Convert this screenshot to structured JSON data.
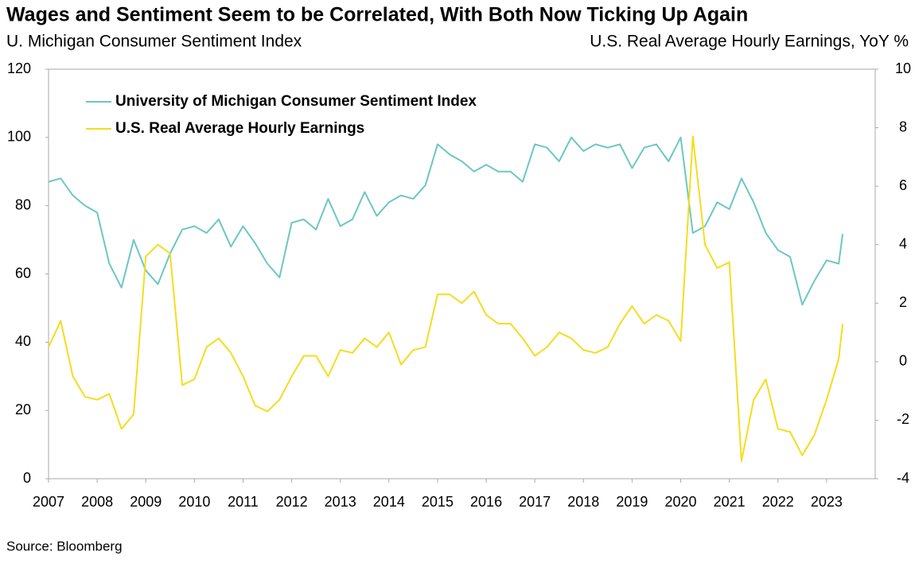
{
  "chart_data": {
    "type": "line",
    "title": "Wages and Sentiment Seem to be Correlated, With Both Now Ticking Up Again",
    "y_axis_title": "U. Michigan Consumer Sentiment Index",
    "y2_axis_title": "U.S. Real Average Hourly Earnings, YoY %",
    "source": "Source: Bloomberg",
    "x": [
      2007,
      2007.25,
      2007.5,
      2007.75,
      2008,
      2008.25,
      2008.5,
      2008.75,
      2009,
      2009.25,
      2009.5,
      2009.75,
      2010,
      2010.25,
      2010.5,
      2010.75,
      2011,
      2011.25,
      2011.5,
      2011.75,
      2012,
      2012.25,
      2012.5,
      2012.75,
      2013,
      2013.25,
      2013.5,
      2013.75,
      2014,
      2014.25,
      2014.5,
      2014.75,
      2015,
      2015.25,
      2015.5,
      2015.75,
      2016,
      2016.25,
      2016.5,
      2016.75,
      2017,
      2017.25,
      2017.5,
      2017.75,
      2018,
      2018.25,
      2018.5,
      2018.75,
      2019,
      2019.25,
      2019.5,
      2019.75,
      2020,
      2020.25,
      2020.5,
      2020.75,
      2021,
      2021.25,
      2021.5,
      2021.75,
      2022,
      2022.25,
      2022.5,
      2022.75,
      2023,
      2023.25,
      2023.33
    ],
    "xlim": [
      2007,
      2024
    ],
    "xticks": [
      2007,
      2008,
      2009,
      2010,
      2011,
      2012,
      2013,
      2014,
      2015,
      2016,
      2017,
      2018,
      2019,
      2020,
      2021,
      2022,
      2023
    ],
    "ylim": [
      0,
      120
    ],
    "yticks": [
      0,
      20,
      40,
      60,
      80,
      100,
      120
    ],
    "y2lim": [
      -4,
      10
    ],
    "y2ticks": [
      -4,
      -2,
      0,
      2,
      4,
      6,
      8,
      10
    ],
    "legend": "upper-left",
    "series": [
      {
        "name": "University of Michigan Consumer Sentiment Index",
        "color": "#6cc7c4",
        "values": [
          87,
          88,
          83,
          80,
          78,
          63,
          56,
          70,
          61,
          57,
          66,
          73,
          74,
          72,
          76,
          68,
          74,
          69,
          63,
          59,
          75,
          76,
          73,
          82,
          74,
          76,
          84,
          77,
          81,
          83,
          82,
          86,
          98,
          95,
          93,
          90,
          92,
          90,
          90,
          87,
          98,
          97,
          93,
          100,
          96,
          98,
          97,
          98,
          91,
          97,
          98,
          93,
          100,
          72,
          74,
          81,
          79,
          88,
          81,
          72,
          67,
          65,
          51,
          58,
          64,
          63,
          71.7
        ]
      },
      {
        "name": "U.S. Real Average Hourly Earnings",
        "color": "#f6dc1f",
        "axis": "y2",
        "values": [
          0.5,
          1.4,
          -0.5,
          -1.2,
          -1.3,
          -1.1,
          -2.3,
          -1.8,
          3.6,
          4.0,
          3.7,
          -0.8,
          -0.6,
          0.5,
          0.8,
          0.3,
          -0.5,
          -1.5,
          -1.7,
          -1.3,
          -0.5,
          0.2,
          0.2,
          -0.5,
          0.4,
          0.3,
          0.8,
          0.5,
          1.0,
          -0.1,
          0.4,
          0.5,
          2.3,
          2.3,
          2.0,
          2.4,
          1.6,
          1.3,
          1.3,
          0.8,
          0.2,
          0.5,
          1.0,
          0.8,
          0.4,
          0.3,
          0.5,
          1.3,
          1.9,
          1.3,
          1.6,
          1.4,
          0.7,
          7.7,
          4.0,
          3.2,
          3.4,
          -3.4,
          -1.3,
          -0.6,
          -2.3,
          -2.4,
          -3.2,
          -2.5,
          -1.3,
          0.1,
          1.3
        ]
      }
    ]
  }
}
